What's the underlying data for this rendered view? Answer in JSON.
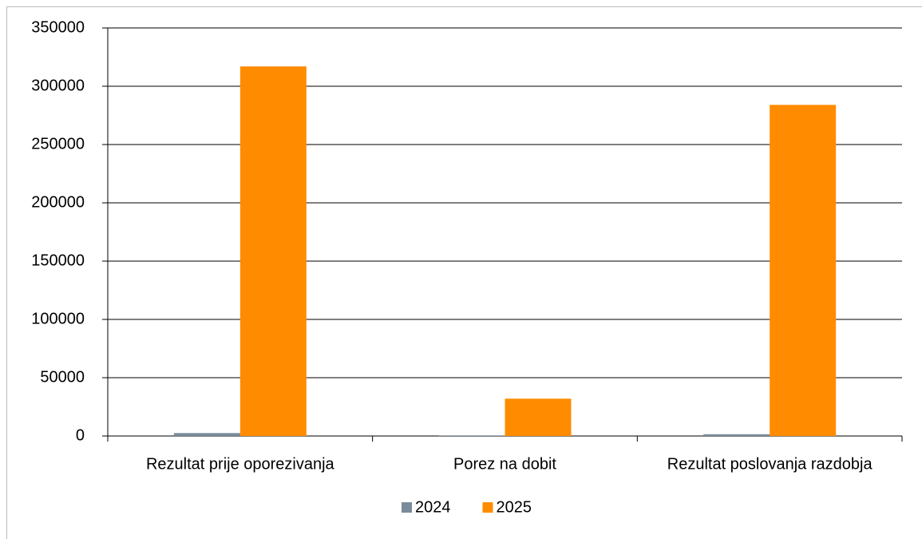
{
  "chart_data": {
    "type": "bar",
    "categories": [
      "Rezultat prije oporezivanja",
      "Porez na dobit",
      "Rezultat poslovanja razdobja"
    ],
    "series": [
      {
        "name": "2024",
        "color": "#7a8b99",
        "values": [
          2500,
          500,
          1500
        ]
      },
      {
        "name": "2025",
        "color": "#ff8c00",
        "values": [
          317000,
          32000,
          284000
        ]
      }
    ],
    "ylim": [
      0,
      350000
    ],
    "yticks": [
      0,
      50000,
      100000,
      150000,
      200000,
      250000,
      300000,
      350000
    ],
    "grid": true
  }
}
